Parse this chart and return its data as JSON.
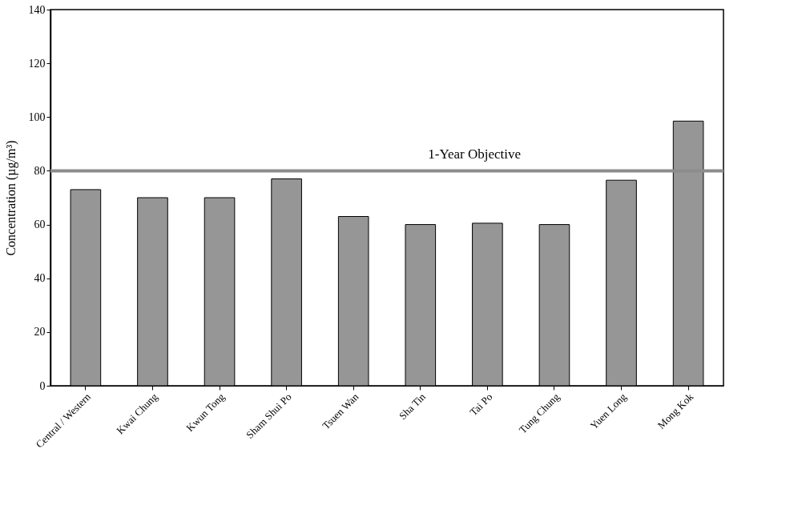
{
  "chart_data": {
    "type": "bar",
    "ylabel": "Concentration (µg/m³)",
    "categories": [
      "Central / Western",
      "Kwai Chung",
      "Kwun Tong",
      "Sham Shui Po",
      "Tsuen Wan",
      "Sha Tin",
      "Tai Po",
      "Tung Chung",
      "Yuen Long",
      "Mong Kok"
    ],
    "values": [
      73,
      70,
      70,
      77,
      63,
      60,
      60.5,
      60,
      76.5,
      98.5
    ],
    "color": "#969696",
    "ylim": [
      0,
      140
    ],
    "yticks": [
      0,
      20,
      40,
      60,
      80,
      100,
      120,
      140
    ],
    "grid": false,
    "ref_lines": [
      {
        "axis": "y",
        "value": 80,
        "label": "1-Year Objective",
        "color": "#8c8c8c"
      }
    ]
  }
}
